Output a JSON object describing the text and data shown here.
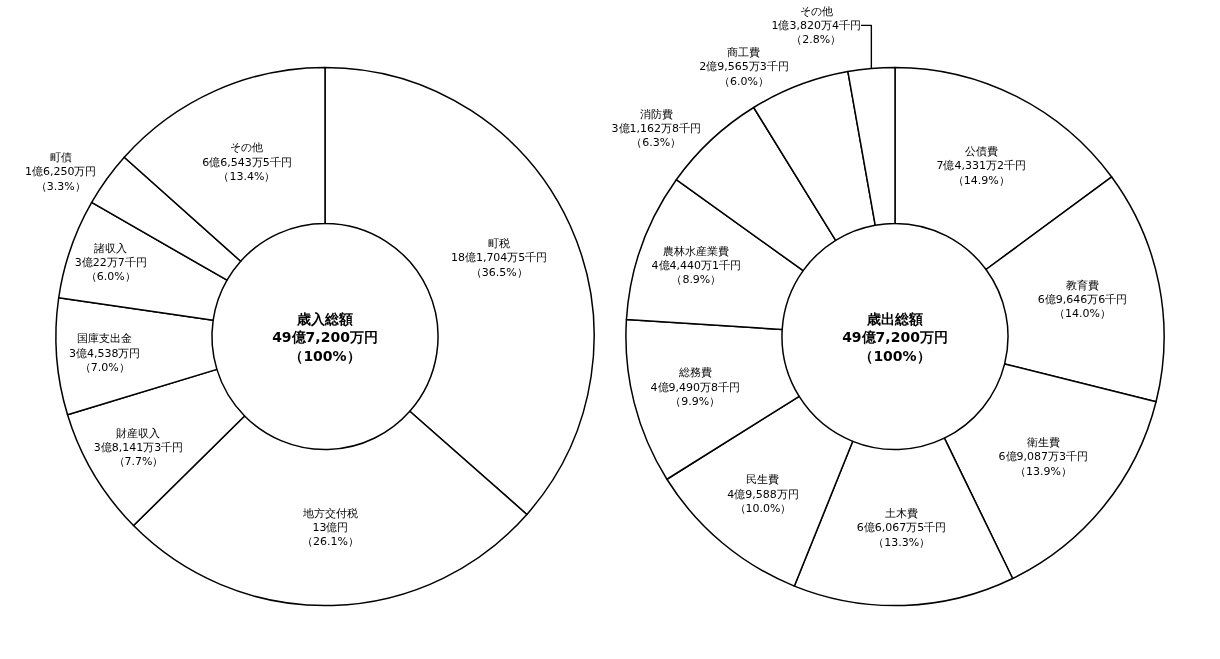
{
  "chart_data": [
    {
      "type": "donut",
      "title": "歳入総額",
      "subtitle": "49億7,200万円（100%）",
      "categories": [
        "町税",
        "地方交付税",
        "財産収入",
        "国庫支出金",
        "諸収入",
        "町債",
        "その他"
      ],
      "values": [
        36.5,
        26.1,
        7.7,
        7.0,
        6.0,
        3.3,
        13.4
      ],
      "value_labels": [
        "18億1,704万5千円（36.5%）",
        "13億円（26.1%）",
        "3億8,141万3千円（7.7%）",
        "3億4,538万円（7.0%）",
        "3億22万7千円（6.0%）",
        "1億6,250万円（3.3%）",
        "6億6,543万5千円（13.4%）"
      ],
      "colors": [
        "#ffffff",
        "#ffffff",
        "#ffffff",
        "#ffffff",
        "#ffffff",
        "#ffffff",
        "#ffffff"
      ],
      "legend": false
    },
    {
      "type": "donut",
      "title": "歳出総額",
      "subtitle": "49億7,200万円（100%）",
      "categories": [
        "公債費",
        "教育費",
        "衛生費",
        "土木費",
        "民生費",
        "総務費",
        "農林水産業費",
        "消防費",
        "商工費",
        "その他"
      ],
      "values": [
        14.9,
        14.0,
        13.9,
        13.3,
        10.0,
        9.9,
        8.9,
        6.3,
        6.0,
        2.8
      ],
      "value_labels": [
        "7億4,331万2千円（14.9%）",
        "6億9,646万6千円（14.0%）",
        "6億9,087万3千円（13.9%）",
        "6億6,067万5千円（13.3%）",
        "4億9,588万円（10.0%）",
        "4億9,490万8千円（9.9%）",
        "4億4,440万1千円（8.9%）",
        "3億1,162万8千円（6.3%）",
        "2億9,565万3千円（6.0%）",
        "1億3,820万4千円（2.8%）"
      ],
      "colors": [
        "#ffffff",
        "#ffffff",
        "#ffffff",
        "#ffffff",
        "#ffffff",
        "#ffffff",
        "#ffffff",
        "#ffffff",
        "#ffffff",
        "#ffffff"
      ],
      "legend": false
    }
  ]
}
